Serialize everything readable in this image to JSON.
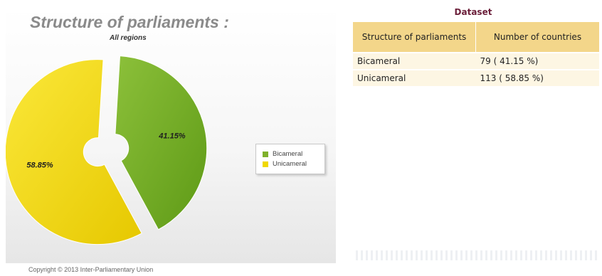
{
  "chart_data": {
    "type": "pie",
    "title": "Structure of parliaments :",
    "subtitle": "All regions",
    "slices": [
      {
        "label": "Bicameral",
        "value": 41.15,
        "display": "41.15%",
        "color": "#7fb02a"
      },
      {
        "label": "Unicameral",
        "value": 58.85,
        "display": "58.85%",
        "color": "#f0d800"
      }
    ],
    "legend": {
      "position": "right",
      "entries": [
        "Bicameral",
        "Unicameral"
      ]
    }
  },
  "colors": {
    "bicameral": "#7fb02a",
    "unicameral": "#f0d800",
    "table_header": "#f3d68a",
    "table_row": "#fdf6e3",
    "dataset_title": "#6b1f3a"
  },
  "copyright": "Copyright © 2013 Inter-Parliamentary Union",
  "dataset": {
    "title": "Dataset",
    "headers": [
      "Structure of parliaments",
      "Number of countries"
    ],
    "rows": [
      [
        "Bicameral",
        "79 ( 41.15 %)"
      ],
      [
        "Unicameral",
        "113 ( 58.85 %)"
      ]
    ]
  }
}
